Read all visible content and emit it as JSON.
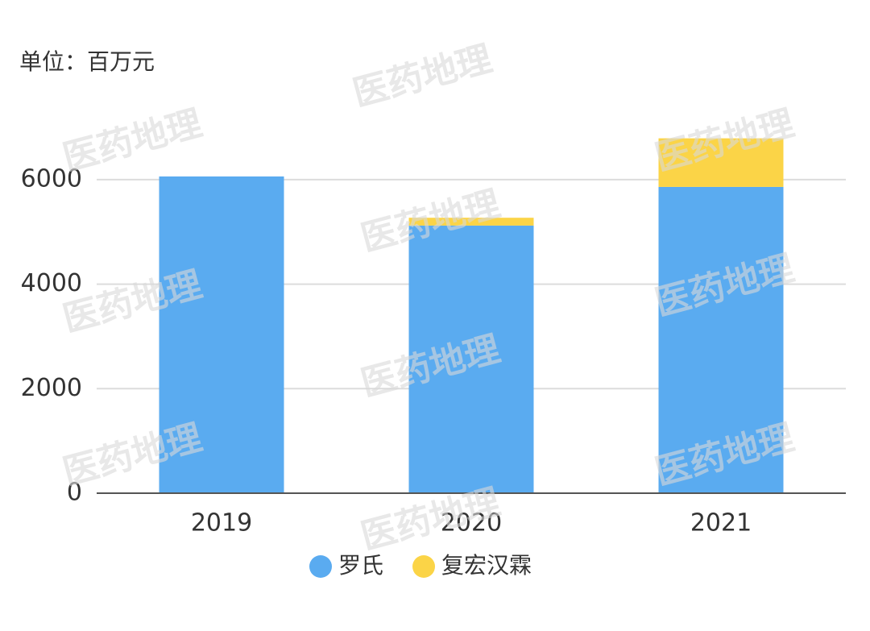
{
  "chart_data": {
    "type": "stacked-bar",
    "y_label": "单位：百万元",
    "watermark": "医药地理",
    "categories": [
      "2019",
      "2020",
      "2021"
    ],
    "series": [
      {
        "name": "罗氏",
        "color": "#5aabf0",
        "values": [
          6060,
          5120,
          5860
        ]
      },
      {
        "name": "复宏汉霖",
        "color": "#fbd447",
        "values": [
          0,
          150,
          930
        ]
      }
    ],
    "ylim": [
      0,
      7000
    ],
    "yticks": [
      0,
      2000,
      4000,
      6000
    ],
    "grid": true,
    "legend": "bottom"
  }
}
